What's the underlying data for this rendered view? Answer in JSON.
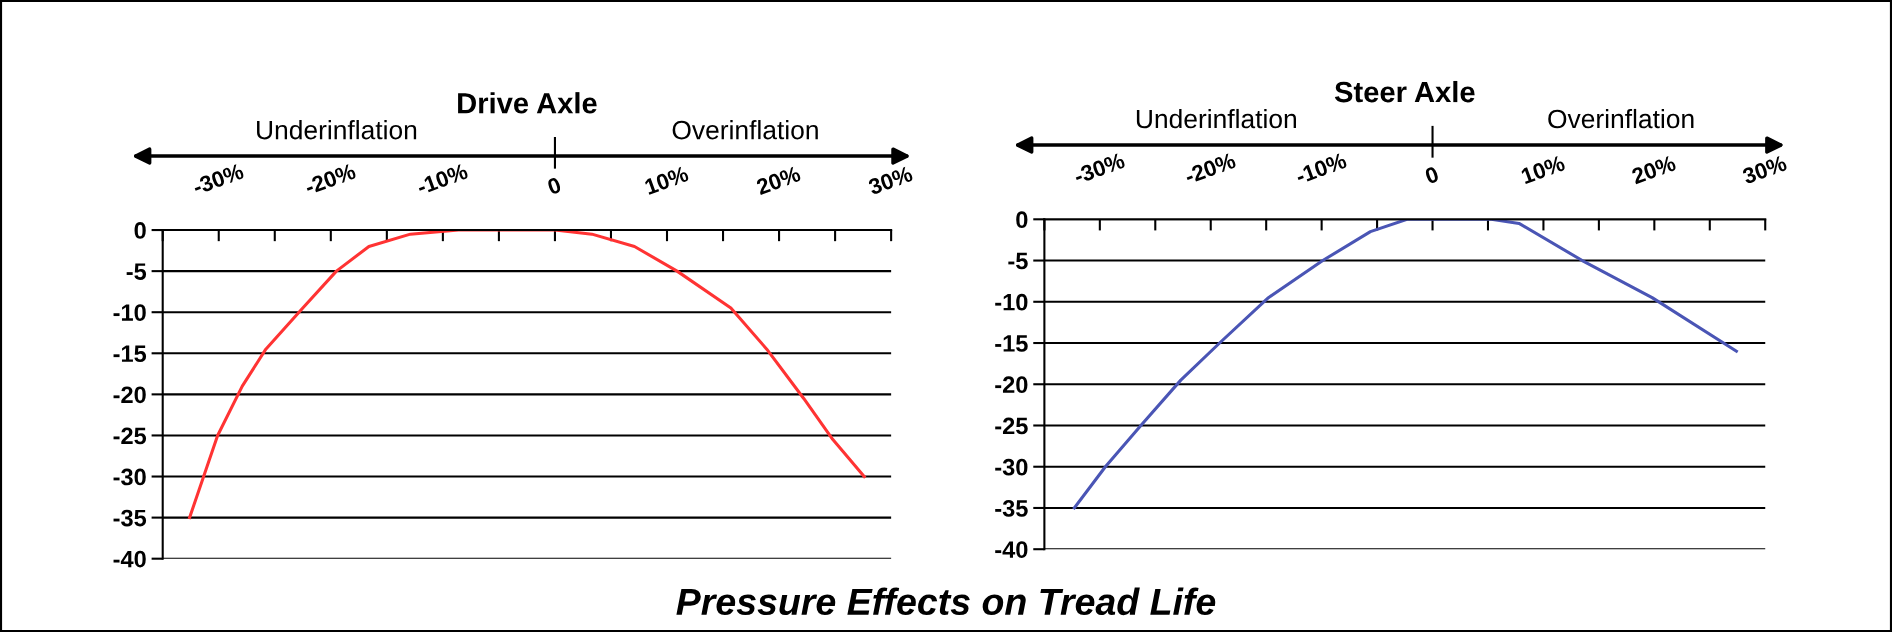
{
  "chart_data": [
    {
      "type": "line",
      "title": "Drive Axle",
      "annotations": [
        "Underinflation",
        "Overinflation"
      ],
      "series": [
        {
          "color": "#ff3333",
          "x": [
            -32.6,
            -30.1,
            -27.9,
            -25.8,
            -22.5,
            -19.5,
            -16.6,
            -12.9,
            -8.6,
            0,
            3.3,
            7.1,
            10.9,
            15.7,
            18.9,
            22.2,
            24.8,
            27.6
          ],
          "values": [
            -35,
            -25,
            -19,
            -14.5,
            -9.5,
            -5,
            -2,
            -0.5,
            0,
            0,
            -0.5,
            -2,
            -5,
            -9.5,
            -14.5,
            -20.5,
            -25.5,
            -30
          ]
        }
      ],
      "xlim": [
        -35,
        30
      ],
      "xticks": [
        {
          "value": -35,
          "label": null
        },
        {
          "value": -30,
          "label": "-30%"
        },
        {
          "value": -25,
          "label": null
        },
        {
          "value": -20,
          "label": "-20%"
        },
        {
          "value": -15,
          "label": null
        },
        {
          "value": -10,
          "label": "-10%"
        },
        {
          "value": -5,
          "label": null
        },
        0,
        {
          "value": 5,
          "label": null
        },
        {
          "value": 10,
          "label": "10%"
        },
        {
          "value": 15,
          "label": null
        },
        {
          "value": 20,
          "label": "20%"
        },
        {
          "value": 25,
          "label": null
        },
        {
          "value": 30,
          "label": "30%"
        }
      ],
      "ylim": [
        -40,
        0
      ],
      "yticks": [
        0,
        -5,
        -10,
        -15,
        -20,
        -25,
        -30,
        -35,
        -40
      ],
      "grid": "y",
      "marker": "none",
      "line_style": "solid",
      "legend": false
    },
    {
      "type": "line",
      "title": "Steer Axle",
      "annotations": [
        "Underinflation",
        "Overinflation",
        "Pressure Effects on Tread Life"
      ],
      "series": [
        {
          "color": "#4a55b5",
          "x": [
            -32.3,
            -29.5,
            -26.3,
            -22.7,
            -19.2,
            -14.8,
            -9.9,
            -5.6,
            -2.3,
            5.3,
            7.8,
            13.5,
            19.8,
            27.4
          ],
          "values": [
            -35,
            -30,
            -25,
            -19.5,
            -15,
            -9.5,
            -5,
            -1.5,
            0,
            0,
            -0.5,
            -5,
            -9.5,
            -16
          ]
        }
      ],
      "xlim": [
        -35,
        30
      ],
      "xticks": [
        {
          "value": -35,
          "label": null
        },
        {
          "value": -30,
          "label": "-30%"
        },
        {
          "value": -25,
          "label": null
        },
        {
          "value": -20,
          "label": "-20%"
        },
        {
          "value": -15,
          "label": null
        },
        {
          "value": -10,
          "label": "-10%"
        },
        {
          "value": -5,
          "label": null
        },
        0,
        {
          "value": 5,
          "label": null
        },
        {
          "value": 10,
          "label": "10%"
        },
        {
          "value": 15,
          "label": null
        },
        {
          "value": 20,
          "label": "20%"
        },
        {
          "value": 25,
          "label": null
        },
        {
          "value": 30,
          "label": "30%"
        }
      ],
      "ylim": [
        -40,
        0
      ],
      "yticks": [
        0,
        -5,
        -10,
        -15,
        -20,
        -25,
        -30,
        -35,
        -40
      ],
      "grid": "y",
      "marker": "none",
      "line_style": "solid",
      "legend": false
    }
  ]
}
